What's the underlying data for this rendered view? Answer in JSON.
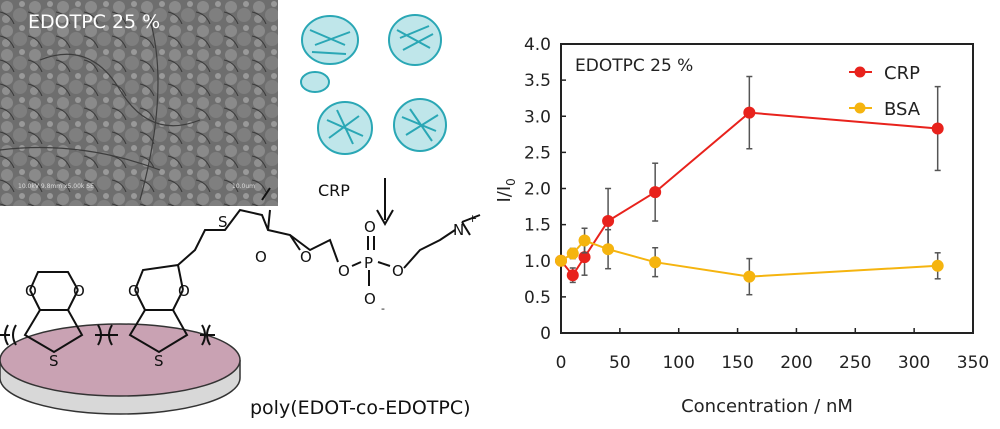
{
  "sem": {
    "label": "EDOTPC 25 %",
    "scale_info": "10.0kV 9.8mm x5.00k SE",
    "scale_bar": "10.0um"
  },
  "protein": {
    "label": "CRP"
  },
  "polymer": {
    "name": "poly(EDOT-co-EDOTPC)",
    "atoms": [
      "O",
      "O",
      "O",
      "O",
      "S",
      "S",
      "S",
      "O",
      "O",
      "O",
      "O",
      "P",
      "O",
      "O",
      "N",
      "+",
      "-"
    ]
  },
  "chart_data": {
    "type": "line",
    "annotation": "EDOTPC 25 %",
    "xlabel": "Concentration / nM",
    "ylabel": "I/I",
    "ylabel_sub": "0",
    "xlim": [
      0,
      350
    ],
    "ylim": [
      0,
      4.0
    ],
    "xticks": [
      0,
      50,
      100,
      150,
      200,
      250,
      300,
      350
    ],
    "yticks": [
      "0",
      "0.5",
      "1.0",
      "1.5",
      "2.0",
      "2.5",
      "3.0",
      "3.5",
      "4.0"
    ],
    "legend_position": "top-right",
    "grid": false,
    "x": [
      0,
      10,
      20,
      40,
      80,
      160,
      320
    ],
    "series": [
      {
        "name": "CRP",
        "color": "#e8221c",
        "values": [
          1.0,
          0.8,
          1.05,
          1.55,
          1.95,
          3.05,
          2.83
        ],
        "errors": [
          0,
          0.1,
          0.25,
          0.45,
          0.4,
          0.5,
          0.58
        ]
      },
      {
        "name": "BSA",
        "color": "#f5b40f",
        "values": [
          1.0,
          1.1,
          1.28,
          1.16,
          0.98,
          0.78,
          0.93
        ],
        "errors": [
          0,
          0.07,
          0.17,
          0.27,
          0.2,
          0.25,
          0.18
        ]
      }
    ]
  }
}
